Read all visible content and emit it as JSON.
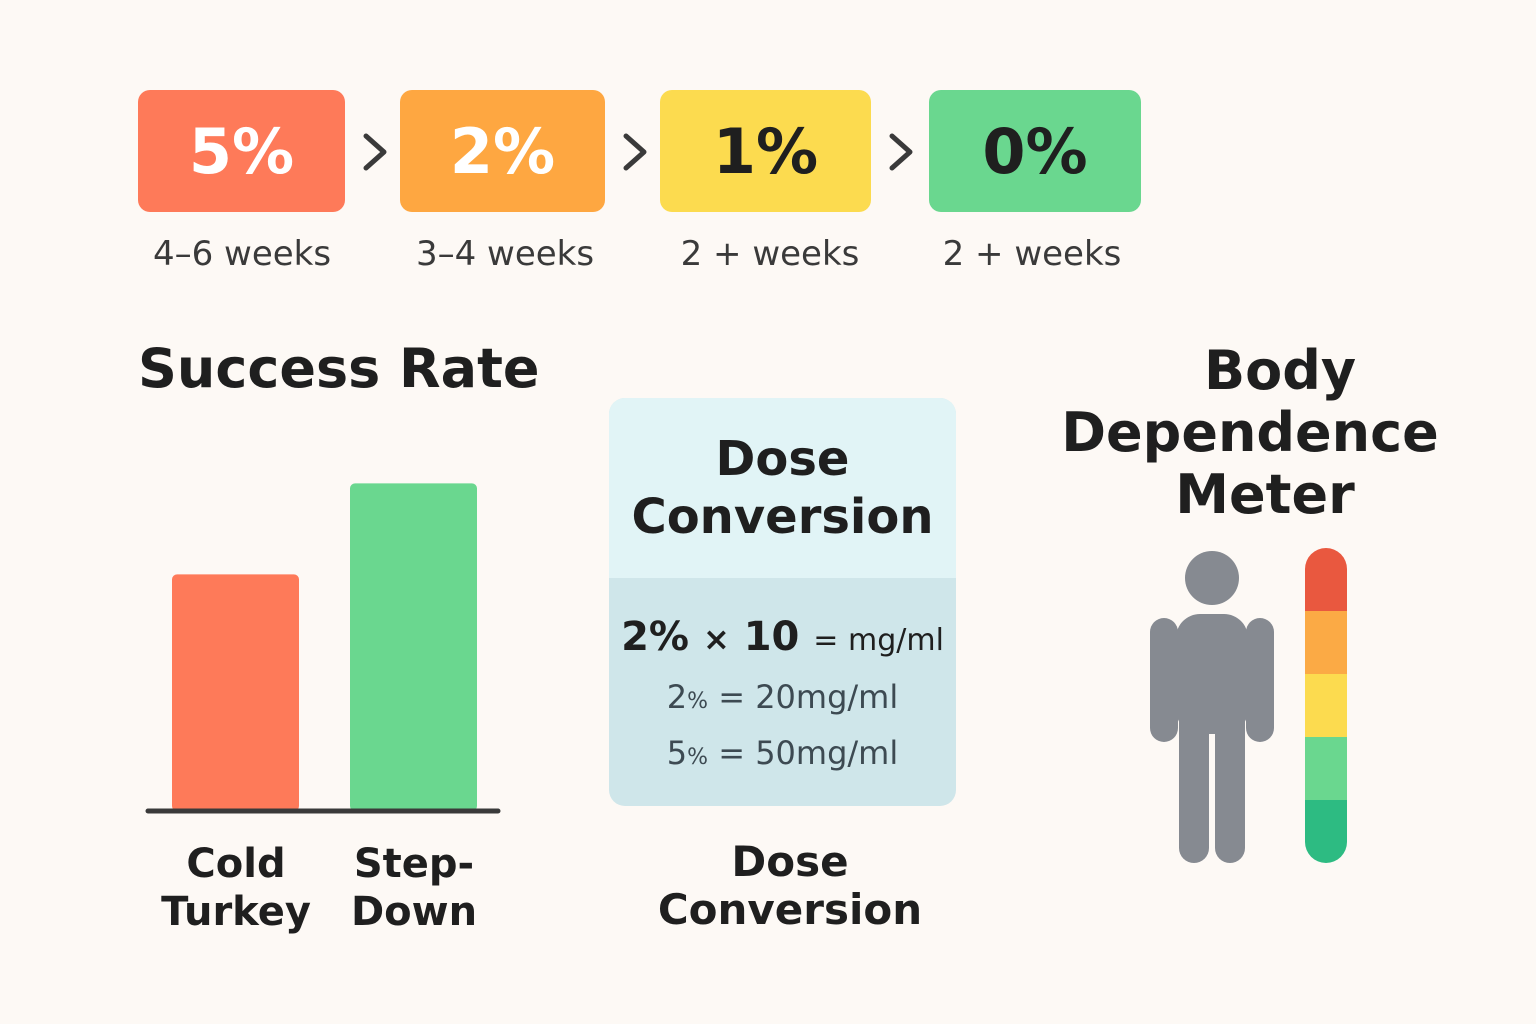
{
  "steps": [
    {
      "label": "5%",
      "duration": "4–6 weeks",
      "color": "#fe7a59",
      "text_color": "#ffffff"
    },
    {
      "label": "2%",
      "duration": "3–4 weeks",
      "color": "#fea741",
      "text_color": "#ffffff"
    },
    {
      "label": "1%",
      "duration": "2 + weeks",
      "color": "#fcdb4f",
      "text_color": "#1f1f1f"
    },
    {
      "label": "0%",
      "duration": "2 + weeks",
      "color": "#6ad78f",
      "text_color": "#1f1f1f"
    }
  ],
  "chart_data": {
    "type": "bar",
    "title": "Success Rate",
    "categories": [
      "Cold Turkey",
      "Step-Down"
    ],
    "category_lines": [
      [
        "Cold",
        "Turkey"
      ],
      [
        "Step-",
        "Down"
      ]
    ],
    "values": [
      2.6,
      3.6
    ],
    "colors": [
      "#fe7a59",
      "#6ad78f"
    ],
    "ylim": [
      0,
      4
    ],
    "grid": false,
    "axis_color": "#3a3a3a"
  },
  "dose": {
    "header": [
      "Dose",
      "Conversion"
    ],
    "formula": {
      "percent": "2%",
      "times": "×",
      "factor": "10",
      "result": "= mg/ml"
    },
    "examples": [
      {
        "pct_num": "2",
        "pct_sym": "%",
        "rest": " = 20mg/ml"
      },
      {
        "pct_num": "5",
        "pct_sym": "%",
        "rest": " = 50mg/ml"
      }
    ],
    "caption": [
      "Dose",
      "Conversion"
    ]
  },
  "meter": {
    "title": [
      "Body",
      "Dependence",
      "Meter"
    ],
    "person_icon": "person-icon",
    "person_color": "#868a91",
    "levels": [
      "#e9583f",
      "#fbaa45",
      "#fcdb4f",
      "#6ad78f",
      "#2dbb82"
    ]
  }
}
